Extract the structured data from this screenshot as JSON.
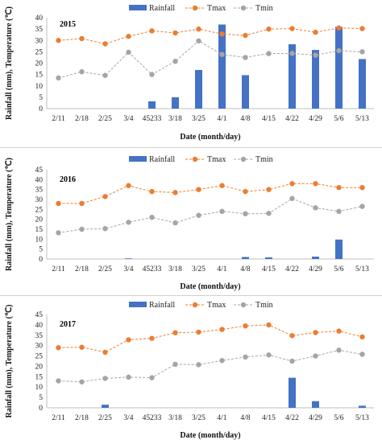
{
  "colors": {
    "rainfall": "#4472C4",
    "tmax": "#ED7D31",
    "tmin": "#A5A5A5",
    "grid": "#d9d9d9"
  },
  "legend": {
    "rainfall": "Rainfall",
    "tmax": "Tmax",
    "tmin": "Tmin"
  },
  "chart_data": [
    {
      "type": "bar+line",
      "title": "2015",
      "xlabel": "Date (month/day)",
      "ylabel": "Rainfall (mm), Temperature (℃)",
      "ylim": [
        0,
        40
      ],
      "yticks": [
        0,
        5,
        10,
        15,
        20,
        25,
        30,
        35,
        40
      ],
      "grid": false,
      "legend_position": "top",
      "categories": [
        "2/11",
        "2/18",
        "2/25",
        "3/4",
        "45233",
        "3/18",
        "3/25",
        "4/1",
        "4/8",
        "4/15",
        "4/22",
        "4/29",
        "5/6",
        "5/13"
      ],
      "series": [
        {
          "name": "Rainfall",
          "kind": "bar",
          "values": [
            0,
            0,
            0,
            0,
            3.2,
            5.0,
            17.0,
            37.0,
            14.7,
            0,
            28.3,
            25.8,
            36.0,
            21.8
          ]
        },
        {
          "name": "Tmax",
          "kind": "line",
          "values": [
            30.0,
            30.8,
            28.5,
            31.8,
            34.2,
            33.3,
            35.0,
            32.8,
            32.2,
            35.0,
            35.2,
            33.6,
            35.5,
            35.2
          ]
        },
        {
          "name": "Tmin",
          "kind": "line",
          "values": [
            13.5,
            16.2,
            14.6,
            24.8,
            15.0,
            20.8,
            29.8,
            23.8,
            22.5,
            24.2,
            24.3,
            23.5,
            25.5,
            25.0
          ]
        }
      ]
    },
    {
      "type": "bar+line",
      "title": "2016",
      "xlabel": "Date (month/day)",
      "ylabel": "Rainfall (mm), Temperature (℃)",
      "ylim": [
        0,
        45
      ],
      "yticks": [
        0,
        5,
        10,
        15,
        20,
        25,
        30,
        35,
        40,
        45
      ],
      "grid": false,
      "legend_position": "top",
      "categories": [
        "2/11",
        "2/18",
        "2/25",
        "3/4",
        "45233",
        "3/18",
        "3/25",
        "4/1",
        "4/8",
        "4/15",
        "4/22",
        "4/29",
        "5/6",
        "5/13"
      ],
      "series": [
        {
          "name": "Rainfall",
          "kind": "bar",
          "values": [
            0,
            0,
            0,
            0.3,
            0,
            0,
            0,
            0,
            1.0,
            0.8,
            0,
            1.2,
            9.8,
            0
          ]
        },
        {
          "name": "Tmax",
          "kind": "line",
          "values": [
            28.0,
            28.0,
            31.5,
            37.0,
            34.0,
            33.5,
            35.0,
            37.0,
            34.0,
            35.0,
            38.0,
            38.0,
            36.0,
            36.0
          ]
        },
        {
          "name": "Tmin",
          "kind": "line",
          "values": [
            13.2,
            15.0,
            15.3,
            18.5,
            21.0,
            18.2,
            22.0,
            24.0,
            22.8,
            23.0,
            30.5,
            25.8,
            24.0,
            26.5
          ]
        }
      ]
    },
    {
      "type": "bar+line",
      "title": "2017",
      "xlabel": "Date (month/day)",
      "ylabel": "Rainfall (mm), Temperature (℃)",
      "ylim": [
        0,
        45
      ],
      "yticks": [
        0,
        5,
        10,
        15,
        20,
        25,
        30,
        35,
        40,
        45
      ],
      "grid": false,
      "legend_position": "top",
      "categories": [
        "2/11",
        "2/18",
        "2/25",
        "3/4",
        "45233",
        "3/18",
        "3/25",
        "4/1",
        "4/8",
        "4/15",
        "4/22",
        "4/29",
        "5/6",
        "5/13"
      ],
      "series": [
        {
          "name": "Rainfall",
          "kind": "bar",
          "values": [
            0,
            0,
            1.5,
            0,
            0,
            0,
            0,
            0,
            0,
            0,
            14.5,
            3.2,
            0,
            1.0
          ]
        },
        {
          "name": "Tmax",
          "kind": "line",
          "values": [
            29.0,
            29.2,
            26.8,
            32.8,
            33.5,
            36.2,
            36.5,
            37.8,
            39.5,
            40.0,
            34.8,
            36.3,
            37.0,
            34.2
          ]
        },
        {
          "name": "Tmin",
          "kind": "line",
          "values": [
            13.0,
            12.5,
            14.2,
            14.8,
            14.5,
            21.0,
            20.8,
            22.8,
            24.5,
            25.5,
            22.5,
            25.0,
            27.8,
            25.8
          ]
        }
      ]
    }
  ]
}
